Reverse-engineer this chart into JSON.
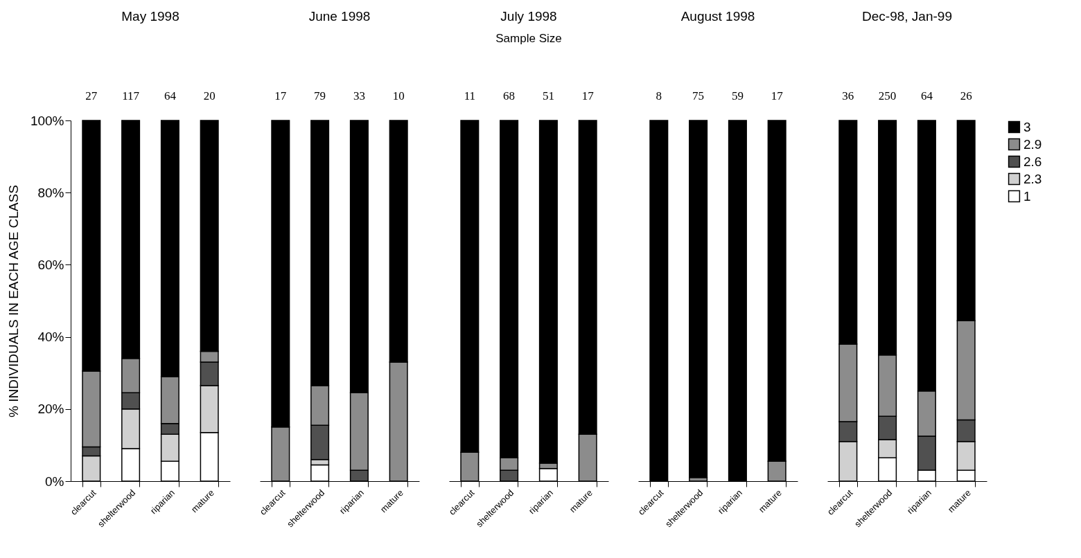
{
  "chart_data": [
    {
      "type": "bar",
      "stacked": true,
      "title": "May 1998",
      "ylabel": "% INDIVIDUALS IN EACH  AGE CLASS",
      "categories": [
        "clearcut",
        "shelterwood",
        "riparian",
        "mature"
      ],
      "ylim": [
        0,
        100
      ],
      "yticks": [
        {
          "value": 0,
          "label": "0%"
        },
        {
          "value": 20,
          "label": "20%"
        },
        {
          "value": 40,
          "label": "40%"
        },
        {
          "value": 60,
          "label": "60%"
        },
        {
          "value": 80,
          "label": "80%"
        },
        {
          "value": 100,
          "label": "100%"
        }
      ],
      "annotations": [
        "27",
        "117",
        "64",
        "20"
      ],
      "series": [
        {
          "color": "#ffffff",
          "values": [
            0,
            9,
            5.5,
            13.5
          ]
        },
        {
          "color": "#d0d0d0",
          "values": [
            7,
            11,
            7.5,
            13
          ]
        },
        {
          "color": "#505050",
          "values": [
            2.5,
            4.5,
            3,
            6.5
          ]
        },
        {
          "color": "#8c8c8c",
          "values": [
            21,
            9.5,
            13,
            3
          ]
        },
        {
          "color": "#000000",
          "values": [
            69.5,
            66,
            71,
            64
          ]
        }
      ]
    },
    {
      "type": "bar",
      "stacked": true,
      "title": "June 1998",
      "categories": [
        "clearcut",
        "shelterwood",
        "riparian",
        "mature"
      ],
      "ylim": [
        0,
        100
      ],
      "tick_labels": "x",
      "annotations": [
        "17",
        "79",
        "33",
        "10"
      ],
      "series": [
        {
          "color": "#ffffff",
          "values": [
            0,
            4.5,
            0,
            0
          ]
        },
        {
          "color": "#d0d0d0",
          "values": [
            0,
            1.5,
            0,
            0
          ]
        },
        {
          "color": "#505050",
          "values": [
            0,
            9.5,
            3,
            0
          ]
        },
        {
          "color": "#8c8c8c",
          "values": [
            15,
            11,
            21.5,
            33
          ]
        },
        {
          "color": "#000000",
          "values": [
            85,
            73.5,
            75.5,
            67
          ]
        }
      ]
    },
    {
      "type": "bar",
      "stacked": true,
      "title": "July 1998",
      "subtitle": "Sample Size",
      "categories": [
        "clearcut",
        "shelterwood",
        "riparian",
        "mature"
      ],
      "ylim": [
        0,
        100
      ],
      "tick_labels": "x",
      "annotations": [
        "11",
        "68",
        "51",
        "17"
      ],
      "series": [
        {
          "color": "#ffffff",
          "values": [
            0,
            0,
            3.5,
            0
          ]
        },
        {
          "color": "#d0d0d0",
          "values": [
            0,
            0,
            0,
            0
          ]
        },
        {
          "color": "#505050",
          "values": [
            0,
            3,
            0,
            0
          ]
        },
        {
          "color": "#8c8c8c",
          "values": [
            8,
            3.5,
            1.5,
            13
          ]
        },
        {
          "color": "#000000",
          "values": [
            92,
            93.5,
            95,
            87
          ]
        }
      ]
    },
    {
      "type": "bar",
      "stacked": true,
      "title": "August 1998",
      "categories": [
        "clearcut",
        "shelterwood",
        "riparian",
        "mature"
      ],
      "ylim": [
        0,
        100
      ],
      "tick_labels": "x",
      "annotations": [
        "8",
        "75",
        "59",
        "17"
      ],
      "series": [
        {
          "color": "#ffffff",
          "values": [
            0,
            0,
            0,
            0
          ]
        },
        {
          "color": "#d0d0d0",
          "values": [
            0,
            0,
            0,
            0
          ]
        },
        {
          "color": "#505050",
          "values": [
            0,
            0,
            0,
            0
          ]
        },
        {
          "color": "#8c8c8c",
          "values": [
            0,
            1,
            0,
            5.5
          ]
        },
        {
          "color": "#000000",
          "values": [
            100,
            99,
            100,
            94.5
          ]
        }
      ]
    },
    {
      "type": "bar",
      "stacked": true,
      "title": "Dec-98, Jan-99",
      "categories": [
        "clearcut",
        "shelterwood",
        "riparian",
        "mature"
      ],
      "ylim": [
        0,
        100
      ],
      "tick_labels": "x",
      "legend": "right",
      "annotations": [
        "36",
        "250",
        "64",
        "26"
      ],
      "series": [
        {
          "name": "1",
          "color": "#ffffff",
          "values": [
            0,
            6.5,
            3,
            3
          ]
        },
        {
          "name": "2.3",
          "color": "#d0d0d0",
          "values": [
            11,
            5,
            0,
            8
          ]
        },
        {
          "name": "2.6",
          "color": "#505050",
          "values": [
            5.5,
            6.5,
            9.5,
            6
          ]
        },
        {
          "name": "2.9",
          "color": "#8c8c8c",
          "values": [
            21.5,
            17,
            12.5,
            27.5
          ]
        },
        {
          "name": "3",
          "color": "#000000",
          "values": [
            62,
            65,
            75,
            55.5
          ]
        }
      ]
    }
  ]
}
